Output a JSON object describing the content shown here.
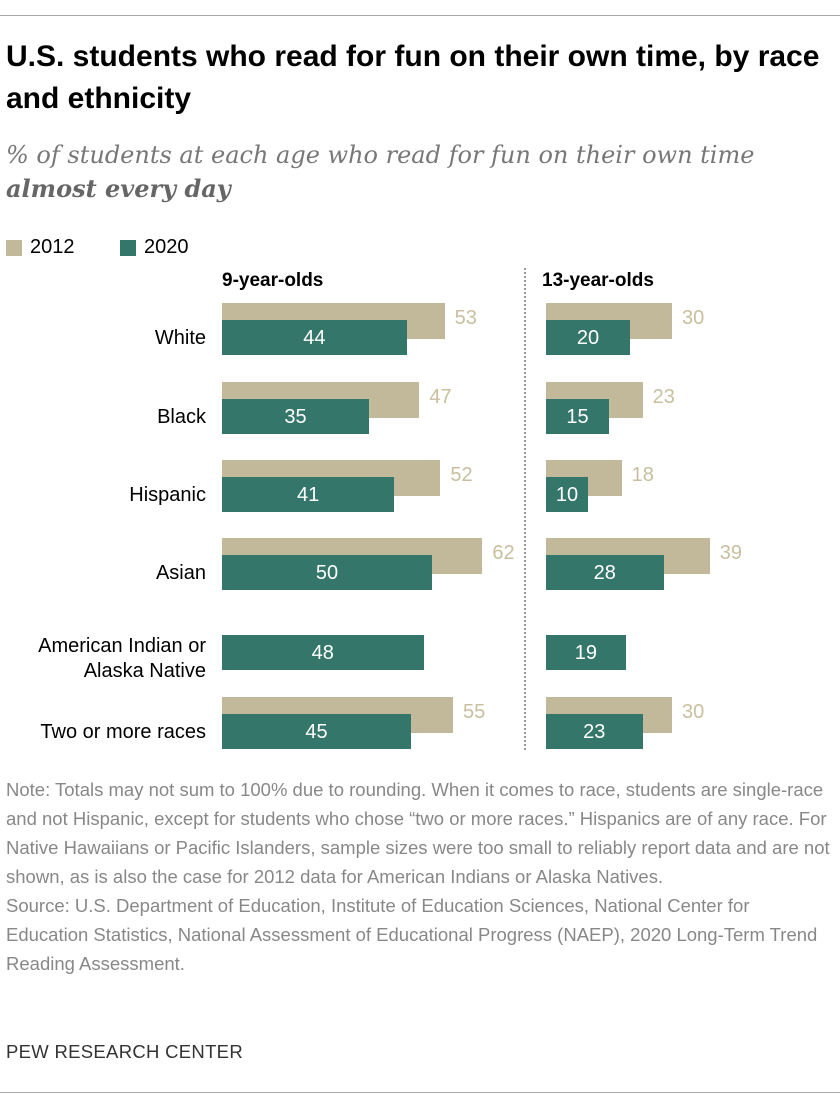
{
  "title": "U.S. students who read for fun on their own time, by race and ethnicity",
  "subtitle": "% of students at each age who read for fun on their own time",
  "subtitle_emphasis": "almost every day",
  "colors": {
    "y2012": "#c2b99a",
    "y2020": "#35766a",
    "label2012": "#c8bf9f"
  },
  "chart_data": {
    "type": "bar",
    "title": "U.S. students who read for fun on their own time, by race and ethnicity",
    "legend": [
      "2012",
      "2020"
    ],
    "legend_placement": "top-left",
    "categories": [
      "White",
      "Black",
      "Hispanic",
      "Asian",
      "American Indian or Alaska Native",
      "Two or more races"
    ],
    "panels": [
      {
        "name": "9-year-olds",
        "series": [
          {
            "name": "2012",
            "values": [
              53,
              47,
              52,
              62,
              null,
              55
            ]
          },
          {
            "name": "2020",
            "values": [
              44,
              35,
              41,
              50,
              48,
              45
            ]
          }
        ]
      },
      {
        "name": "13-year-olds",
        "series": [
          {
            "name": "2012",
            "values": [
              30,
              23,
              18,
              39,
              null,
              30
            ]
          },
          {
            "name": "2020",
            "values": [
              20,
              15,
              10,
              28,
              19,
              23
            ]
          }
        ]
      }
    ]
  },
  "category_lines": [
    [
      "White"
    ],
    [
      "Black"
    ],
    [
      "Hispanic"
    ],
    [
      "Asian"
    ],
    [
      "American Indian or",
      "Alaska Native"
    ],
    [
      "Two or more races"
    ]
  ],
  "note": "Note: Totals may not sum to 100% due to rounding. When it comes to race, students are single-race and not Hispanic, except for students who chose “two or more races.” Hispanics are of any race. For Native Hawaiians or Pacific Islanders, sample sizes were too small to reliably report data and are not shown, as is also the case for 2012 data for American Indians or Alaska Natives.",
  "source": "Source: U.S. Department of Education, Institute of Education Sciences, National Center for Education Statistics, National Assessment of Educational Progress (NAEP), 2020 Long-Term Trend Reading Assessment.",
  "brand": "PEW RESEARCH CENTER"
}
